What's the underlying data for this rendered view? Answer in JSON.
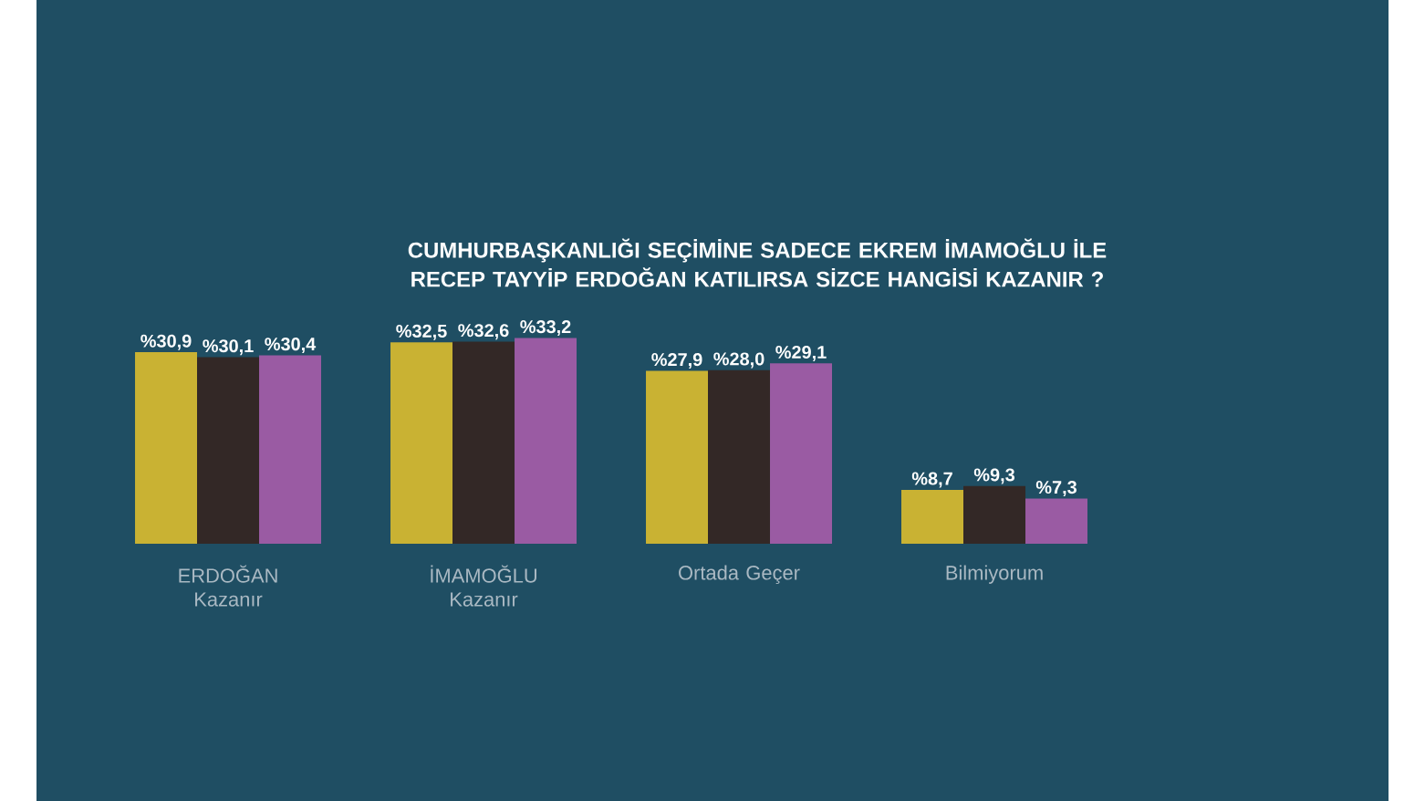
{
  "chart_data": {
    "type": "bar",
    "title": "CUMHURBAŞKANLIĞI SEÇİMİNE SADECE EKREM İMAMOĞLU İLE RECEP TAYYİP ERDOĞAN KATILIRSA SİZCE HANGİSİ KAZANIR ?",
    "categories": [
      "ERDOĞAN Kazanır",
      "İMAMOĞLU Kazanır",
      "Ortada Geçer",
      "Bilmiyorum"
    ],
    "series": [
      {
        "color": "#c9b233",
        "values": [
          30.9,
          32.5,
          27.9,
          8.7
        ],
        "value_labels": [
          "%30,9",
          "%32,5",
          "%27,9",
          "%8,7"
        ]
      },
      {
        "color": "#332826",
        "values": [
          30.1,
          32.6,
          28.0,
          9.3
        ],
        "value_labels": [
          "%30,1",
          "%32,6",
          "%28,0",
          "%9,3"
        ]
      },
      {
        "color": "#9a5ba3",
        "values": [
          30.4,
          33.2,
          29.1,
          7.3
        ],
        "value_labels": [
          "%30,4",
          "%33,2",
          "%29,1",
          "%7,3"
        ]
      }
    ],
    "relative": false
  }
}
